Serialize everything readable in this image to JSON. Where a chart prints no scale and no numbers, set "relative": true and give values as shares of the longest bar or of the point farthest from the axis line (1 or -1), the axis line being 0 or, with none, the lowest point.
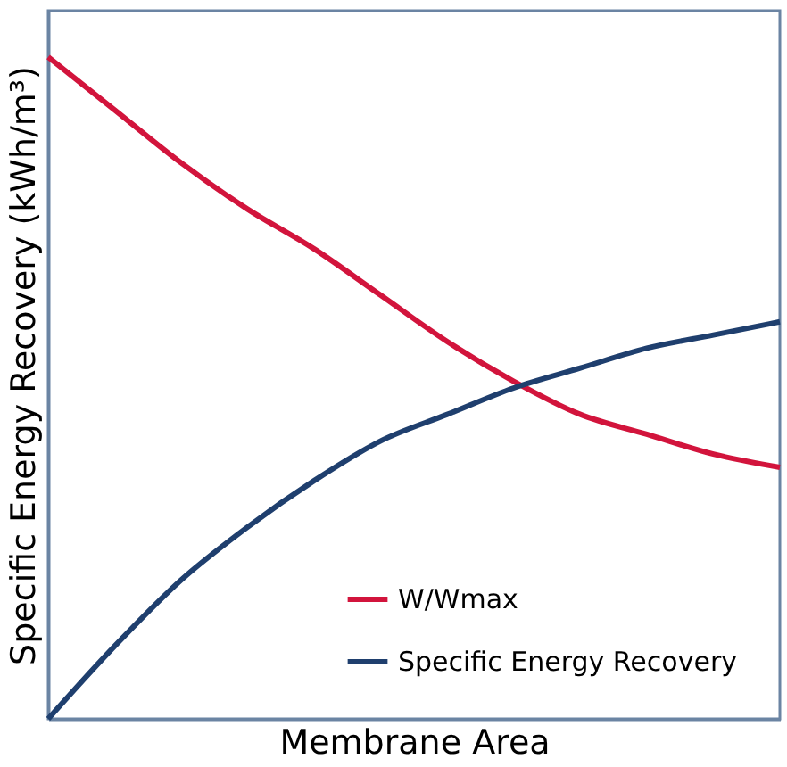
{
  "chart_data": {
    "type": "line",
    "relative": true,
    "xlabel": "Membrane Area",
    "ylabel": "Specific Energy Recovery (kWh/m³)",
    "categories": [
      null,
      null,
      null,
      null,
      null,
      null,
      null,
      null,
      null,
      null,
      null,
      null
    ],
    "series": [
      {
        "name": "W/Wmax",
        "color": "#d2143c",
        "values": [
          1,
          0.92,
          0.84,
          0.77,
          0.71,
          0.64,
          0.57,
          0.51,
          0.46,
          0.43,
          0.4,
          0.38
        ]
      },
      {
        "name": "Specific Energy Recovery",
        "color": "#1f3f6e",
        "values": [
          0,
          0.11,
          0.21,
          0.29,
          0.36,
          0.42,
          0.46,
          0.5,
          0.53,
          0.56,
          0.58,
          0.6
        ]
      }
    ],
    "legend": "bottom right",
    "grid": false,
    "marker": "none",
    "line_style": "solid"
  }
}
